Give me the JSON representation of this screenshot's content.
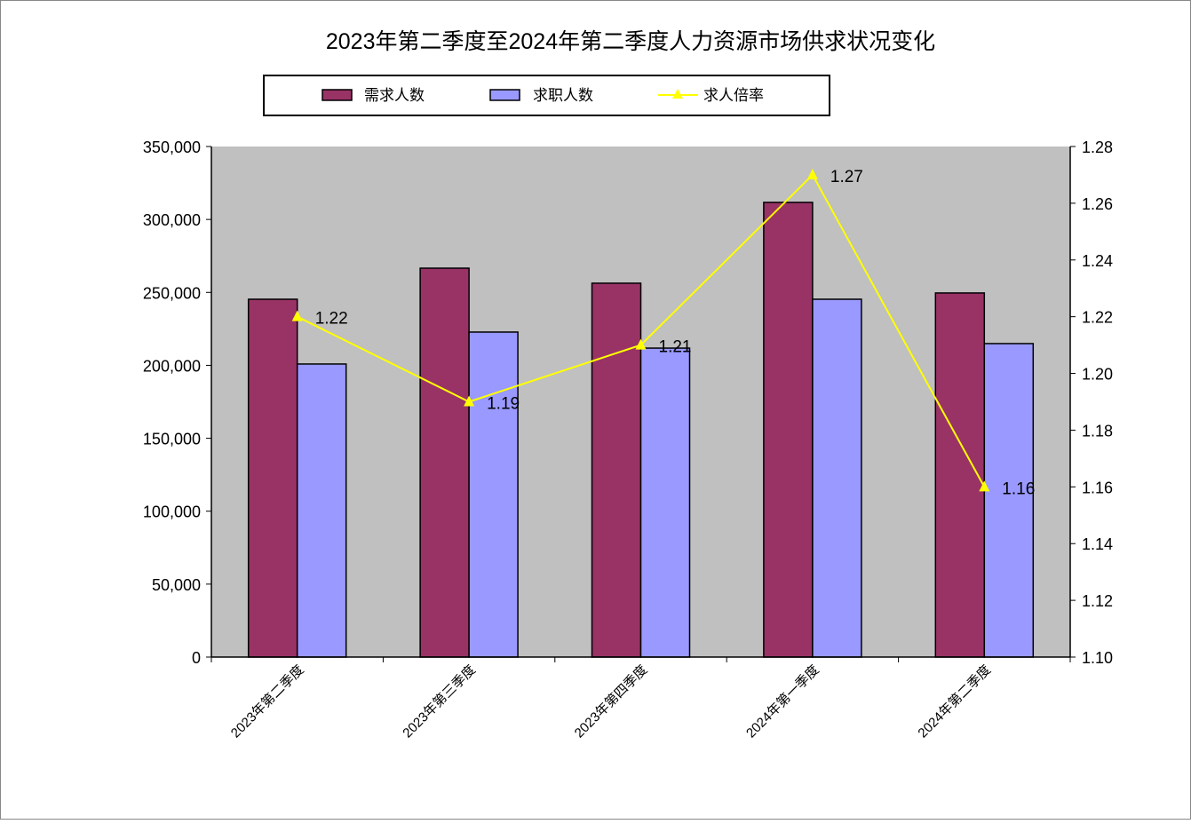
{
  "chart_data": {
    "type": "bar",
    "title": "2023年第二季度至2024年第二季度人力资源市场供求状况变化",
    "categories": [
      "2023年第二季度",
      "2023年第三季度",
      "2023年第四季度",
      "2024年第一季度",
      "2024年第二季度"
    ],
    "series": [
      {
        "name": "需求人数",
        "type": "bar",
        "axis": "left",
        "color": "#993366",
        "values": [
          245300,
          266600,
          256300,
          311700,
          249600
        ]
      },
      {
        "name": "求职人数",
        "type": "bar",
        "axis": "left",
        "color": "#9999FF",
        "values": [
          200900,
          222800,
          211800,
          245300,
          214900
        ]
      },
      {
        "name": "求人倍率",
        "type": "line",
        "axis": "right",
        "color": "#FFFF00",
        "marker": "triangle",
        "values": [
          1.22,
          1.19,
          1.21,
          1.27,
          1.16
        ],
        "labels": [
          "1.22",
          "1.19",
          "1.21",
          "1.27",
          "1.16"
        ]
      }
    ],
    "ylim": [
      0,
      350000
    ],
    "yticks": [
      "0",
      "50,000",
      "100,000",
      "150,000",
      "200,000",
      "250,000",
      "300,000",
      "350,000"
    ],
    "y2lim": [
      1.1,
      1.28
    ],
    "y2ticks": [
      "1.10",
      "1.12",
      "1.14",
      "1.16",
      "1.18",
      "1.20",
      "1.22",
      "1.24",
      "1.26",
      "1.28"
    ],
    "plot_background": "#C0C0C0",
    "legend_position": "top",
    "grid": false
  }
}
